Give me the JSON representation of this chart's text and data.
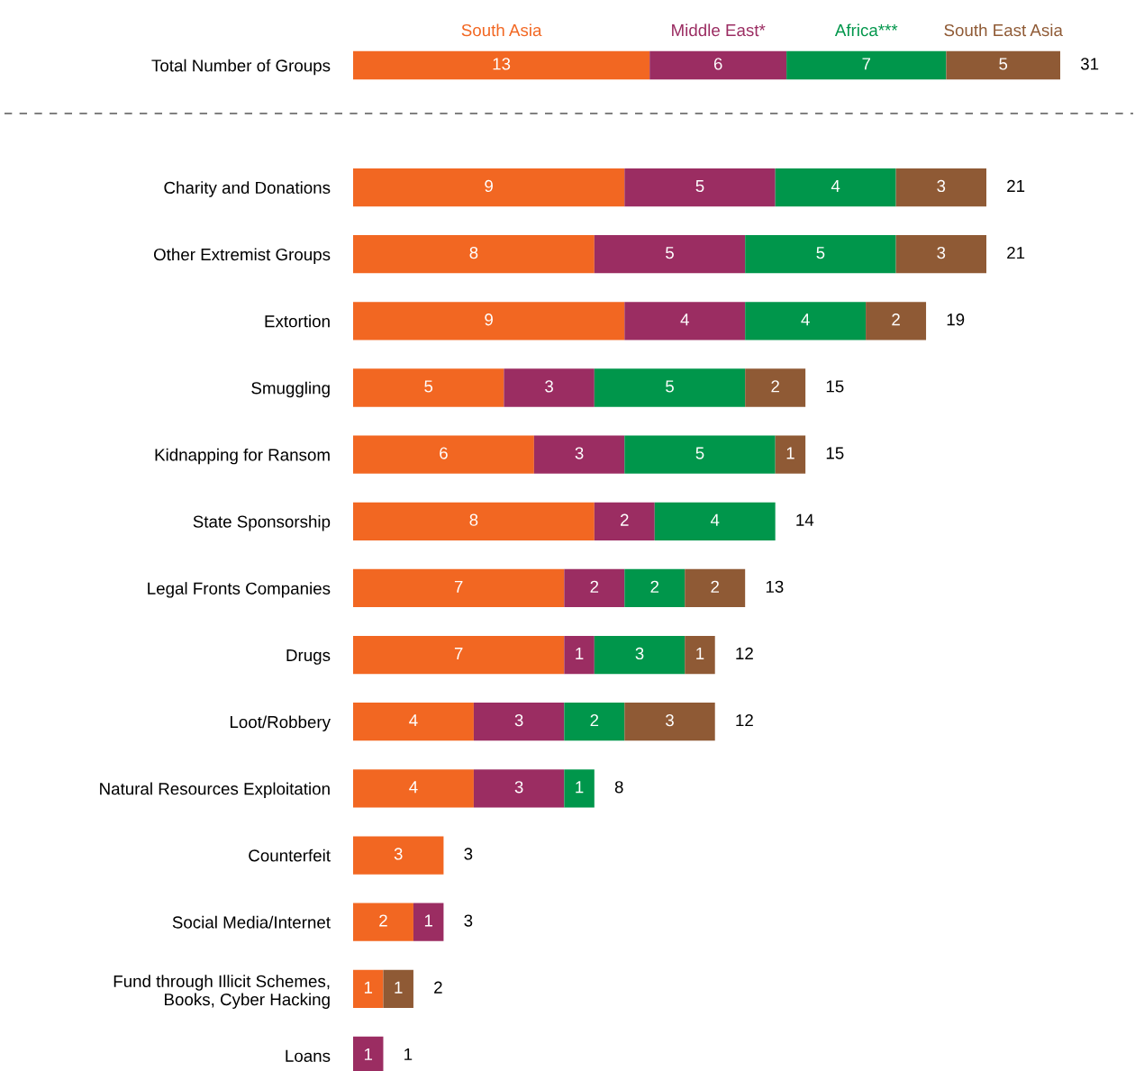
{
  "chart_data": [
    {
      "type": "bar",
      "orientation": "horizontal",
      "stacked": true,
      "legend": "top",
      "data_labels": true,
      "categories": [
        "Total Number of Groups"
      ],
      "series": [
        {
          "name": "South Asia",
          "color": "#f26722",
          "values": [
            13
          ]
        },
        {
          "name": "Middle East*",
          "color": "#9b2d62",
          "values": [
            6
          ]
        },
        {
          "name": "Africa***",
          "color": "#00964b",
          "values": [
            7
          ]
        },
        {
          "name": "South East Asia",
          "color": "#8f5a35",
          "values": [
            5
          ]
        }
      ],
      "totals": [
        "31"
      ]
    },
    {
      "type": "bar",
      "orientation": "horizontal",
      "stacked": true,
      "data_labels": true,
      "categories": [
        "Charity and Donations",
        "Other Extremist Groups",
        "Extortion",
        "Smuggling",
        "Kidnapping for Ransom",
        "State Sponsorship",
        "Legal Fronts Companies",
        "Drugs",
        "Loot/Robbery",
        "Natural Resources Exploitation",
        "Counterfeit",
        "Social Media/Internet",
        "Fund through Illicit Schemes,\nBooks, Cyber Hacking",
        "Loans"
      ],
      "series": [
        {
          "color": "#f26722",
          "values": [
            9,
            8,
            9,
            5,
            6,
            8,
            7,
            7,
            4,
            4,
            3,
            2,
            1,
            null
          ]
        },
        {
          "color": "#9b2d62",
          "values": [
            5,
            5,
            4,
            3,
            3,
            2,
            2,
            1,
            3,
            3,
            null,
            1,
            null,
            1
          ]
        },
        {
          "color": "#00964b",
          "values": [
            4,
            5,
            4,
            5,
            5,
            4,
            2,
            3,
            2,
            1,
            null,
            null,
            null,
            null
          ]
        },
        {
          "color": "#8f5a35",
          "values": [
            3,
            3,
            2,
            2,
            1,
            null,
            2,
            1,
            3,
            null,
            null,
            null,
            1,
            null
          ]
        }
      ],
      "totals": [
        "21",
        "21",
        "19",
        "15",
        "15",
        "14",
        "13",
        "12",
        "12",
        "8",
        "3",
        "3",
        "2",
        "1"
      ]
    }
  ]
}
